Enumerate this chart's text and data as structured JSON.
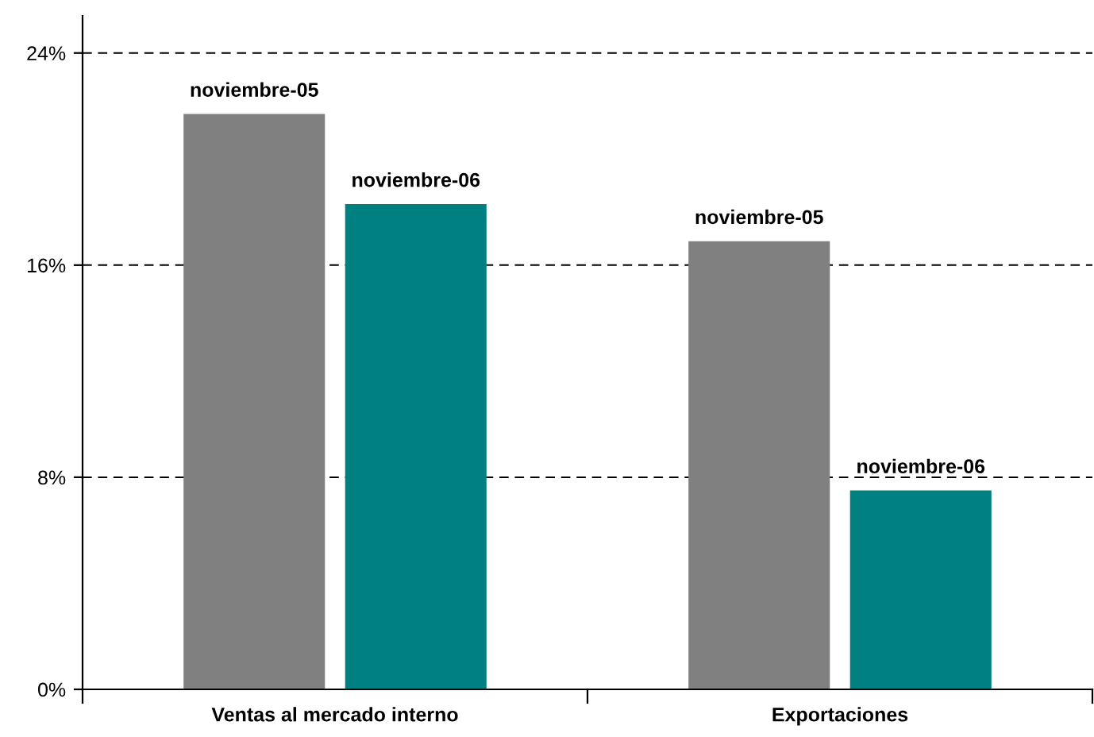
{
  "chart_data": {
    "type": "bar",
    "categories": [
      "Ventas al mercado interno",
      "Exportaciones"
    ],
    "series": [
      {
        "name": "noviembre-05",
        "color": "#808080",
        "values": [
          21.7,
          16.9
        ]
      },
      {
        "name": "noviembre-06",
        "color": "#008080",
        "values": [
          18.3,
          7.5
        ]
      }
    ],
    "ylim": [
      0,
      25.4
    ],
    "yticks": [
      {
        "value": 0,
        "label": "0%"
      },
      {
        "value": 8,
        "label": "8%"
      },
      {
        "value": 16,
        "label": "16%"
      },
      {
        "value": 24,
        "label": "24%"
      }
    ],
    "grid": "y",
    "line_style": "dashed",
    "legend": false
  }
}
